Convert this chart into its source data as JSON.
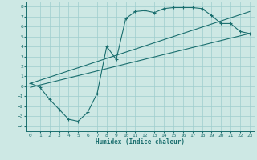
{
  "xlabel": "Humidex (Indice chaleur)",
  "bg_color": "#cde8e4",
  "grid_color": "#9ecece",
  "line_color": "#1a6e6e",
  "xlim": [
    -0.5,
    23.5
  ],
  "ylim": [
    -4.5,
    8.5
  ],
  "xticks": [
    0,
    1,
    2,
    3,
    4,
    5,
    6,
    7,
    8,
    9,
    10,
    11,
    12,
    13,
    14,
    15,
    16,
    17,
    18,
    19,
    20,
    21,
    22,
    23
  ],
  "yticks": [
    -4,
    -3,
    -2,
    -1,
    0,
    1,
    2,
    3,
    4,
    5,
    6,
    7,
    8
  ],
  "line1_x": [
    0,
    1,
    2,
    3,
    4,
    5,
    6,
    7,
    8,
    9,
    10,
    11,
    12,
    13,
    14,
    15,
    16,
    17,
    18,
    19,
    20,
    21,
    22,
    23
  ],
  "line1_y": [
    0.3,
    -0.1,
    -1.3,
    -2.3,
    -3.3,
    -3.5,
    -2.6,
    -0.7,
    4.0,
    2.7,
    6.8,
    7.5,
    7.6,
    7.4,
    7.8,
    7.9,
    7.9,
    7.9,
    7.8,
    7.1,
    6.3,
    6.3,
    5.5,
    5.3
  ],
  "line2_x": [
    0,
    23
  ],
  "line2_y": [
    0.3,
    7.5
  ],
  "line3_x": [
    0,
    23
  ],
  "line3_y": [
    -0.1,
    5.3
  ],
  "tick_fontsize": 4.5,
  "xlabel_fontsize": 5.5
}
